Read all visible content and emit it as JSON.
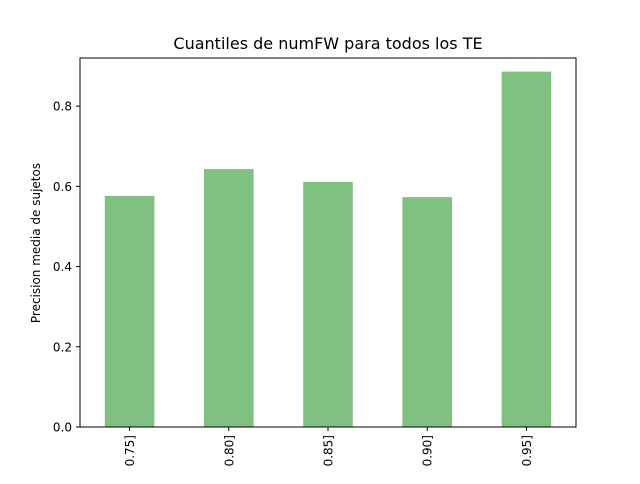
{
  "chart_data": {
    "type": "bar",
    "title": "Cuantiles de numFW para todos los TE",
    "xlabel": "",
    "ylabel": "Precision media de sujetos",
    "categories": [
      "0.75]",
      "0.80]",
      "0.85]",
      "0.90]",
      "0.95]"
    ],
    "values": [
      0.576,
      0.643,
      0.611,
      0.573,
      0.886
    ],
    "ylim": [
      0,
      0.92
    ],
    "yticks": [
      0.0,
      0.2,
      0.4,
      0.6,
      0.8
    ],
    "ytick_labels": [
      "0.0",
      "0.2",
      "0.4",
      "0.6",
      "0.8"
    ],
    "bar_color": "#80c080",
    "grid": false,
    "legend": "none"
  }
}
